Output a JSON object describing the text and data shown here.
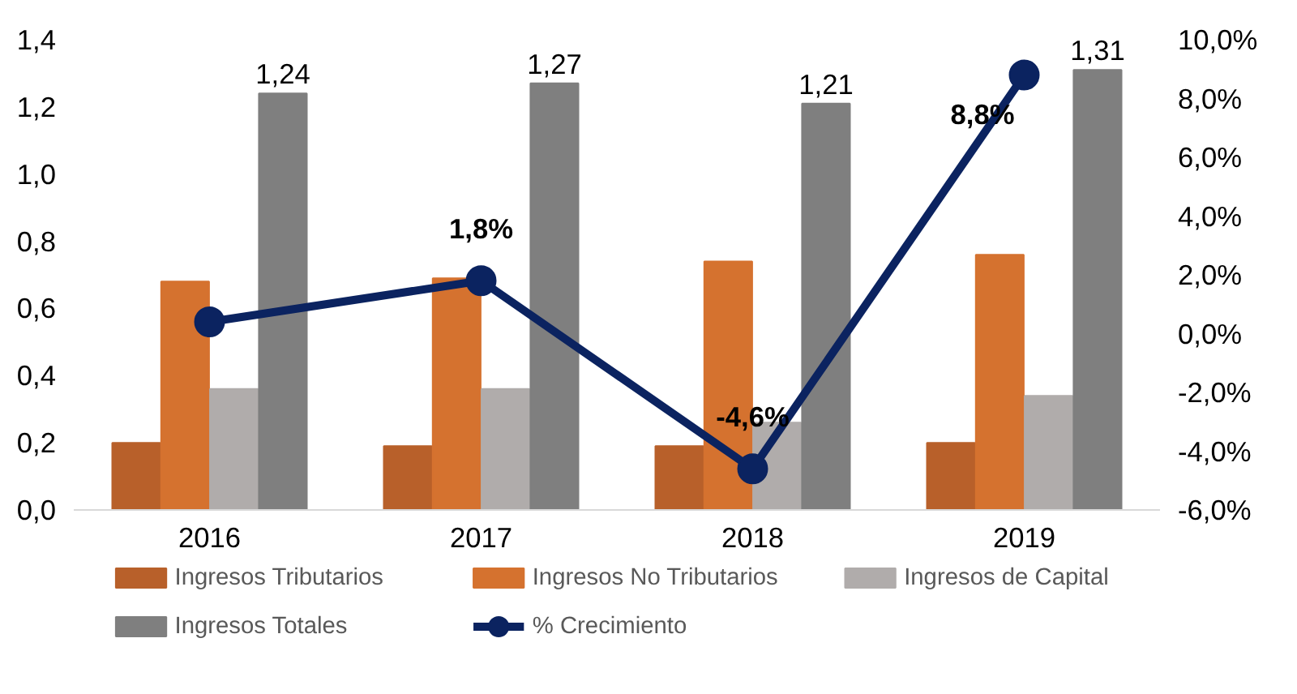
{
  "chart_data": {
    "type": "bar",
    "categories": [
      "2016",
      "2017",
      "2018",
      "2019"
    ],
    "series": [
      {
        "name": "Ingresos Tributarios",
        "color": "#b8602a",
        "values": [
          0.2,
          0.19,
          0.19,
          0.2
        ]
      },
      {
        "name": "Ingresos No Tributarios",
        "color": "#d5722f",
        "values": [
          0.68,
          0.69,
          0.74,
          0.76
        ]
      },
      {
        "name": "Ingresos de Capital",
        "color": "#b0acab",
        "values": [
          0.36,
          0.36,
          0.26,
          0.34
        ]
      },
      {
        "name": "Ingresos Totales",
        "color": "#7f7f7f",
        "values": [
          1.24,
          1.27,
          1.21,
          1.31
        ],
        "value_labels": [
          "1,24",
          "1,27",
          "1,21",
          "1,31"
        ]
      },
      {
        "name": "% Crecimiento",
        "type": "line",
        "axis": "y2",
        "color": "#0b2360",
        "values": [
          0.4,
          1.8,
          -4.6,
          8.8
        ],
        "value_labels": [
          null,
          "1,8%",
          "-4,6%",
          "8,8%"
        ]
      }
    ],
    "ylim": [
      0,
      1.4
    ],
    "yticks": [
      {
        "value": 0,
        "label": "0,0"
      },
      {
        "value": 0.2,
        "label": "0,2"
      },
      {
        "value": 0.4,
        "label": "0,4"
      },
      {
        "value": 0.6,
        "label": "0,6"
      },
      {
        "value": 0.8,
        "label": "0,8"
      },
      {
        "value": 1.0,
        "label": "1,0"
      },
      {
        "value": 1.2,
        "label": "1,2"
      },
      {
        "value": 1.4,
        "label": "1,4"
      }
    ],
    "y2lim": [
      -6,
      10
    ],
    "y2ticks": [
      {
        "value": -6,
        "label": "-6,0%"
      },
      {
        "value": -4,
        "label": "-4,0%"
      },
      {
        "value": -2,
        "label": "-2,0%"
      },
      {
        "value": 0,
        "label": "0,0%"
      },
      {
        "value": 2,
        "label": "2,0%"
      },
      {
        "value": 4,
        "label": "4,0%"
      },
      {
        "value": 6,
        "label": "6,0%"
      },
      {
        "value": 8,
        "label": "8,0%"
      },
      {
        "value": 10,
        "label": "10,0%"
      }
    ],
    "marker": "circle",
    "grid": false,
    "legend": "bottom"
  }
}
